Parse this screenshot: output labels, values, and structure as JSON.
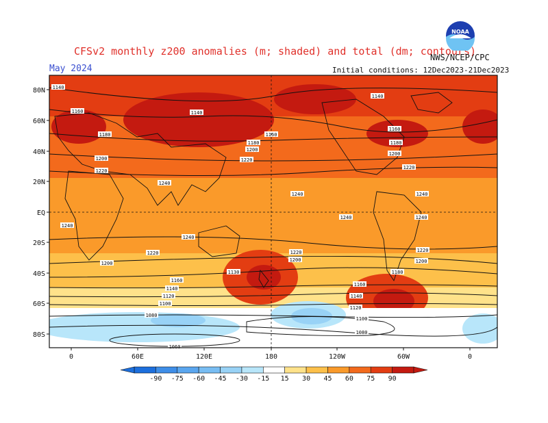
{
  "header": {
    "title": "CFSv2 monthly z200 anomalies (m; shaded) and total (dm; contours)",
    "valid_month": "May 2024",
    "initial_conditions": "Initial conditions: 12Dec2023-21Dec2023",
    "agency": "NWS/NCEP/CPC",
    "logo_text": "NOAA"
  },
  "axes": {
    "lat_labels": [
      "80N",
      "60N",
      "40N",
      "20N",
      "EQ",
      "20S",
      "40S",
      "60S",
      "80S"
    ],
    "lon_labels": [
      "0",
      "60E",
      "120E",
      "180",
      "120W",
      "60W",
      "0"
    ]
  },
  "colorbar": {
    "ticks": [
      "-90",
      "-75",
      "-60",
      "-45",
      "-30",
      "-15",
      "15",
      "30",
      "45",
      "60",
      "75",
      "90"
    ],
    "colors": [
      "#1c6fdd",
      "#3e8ee8",
      "#5aa6ef",
      "#78bdf3",
      "#98d2f6",
      "#b8e6fa",
      "#ffffff",
      "#ffe28a",
      "#fdc04a",
      "#fa9a2a",
      "#f36a1c",
      "#e33d12",
      "#c41a10"
    ]
  },
  "contour_labels": [
    "1140",
    "1160",
    "1180",
    "1200",
    "1220",
    "1240",
    "1130",
    "1120",
    "1100",
    "1080",
    "1060"
  ]
}
